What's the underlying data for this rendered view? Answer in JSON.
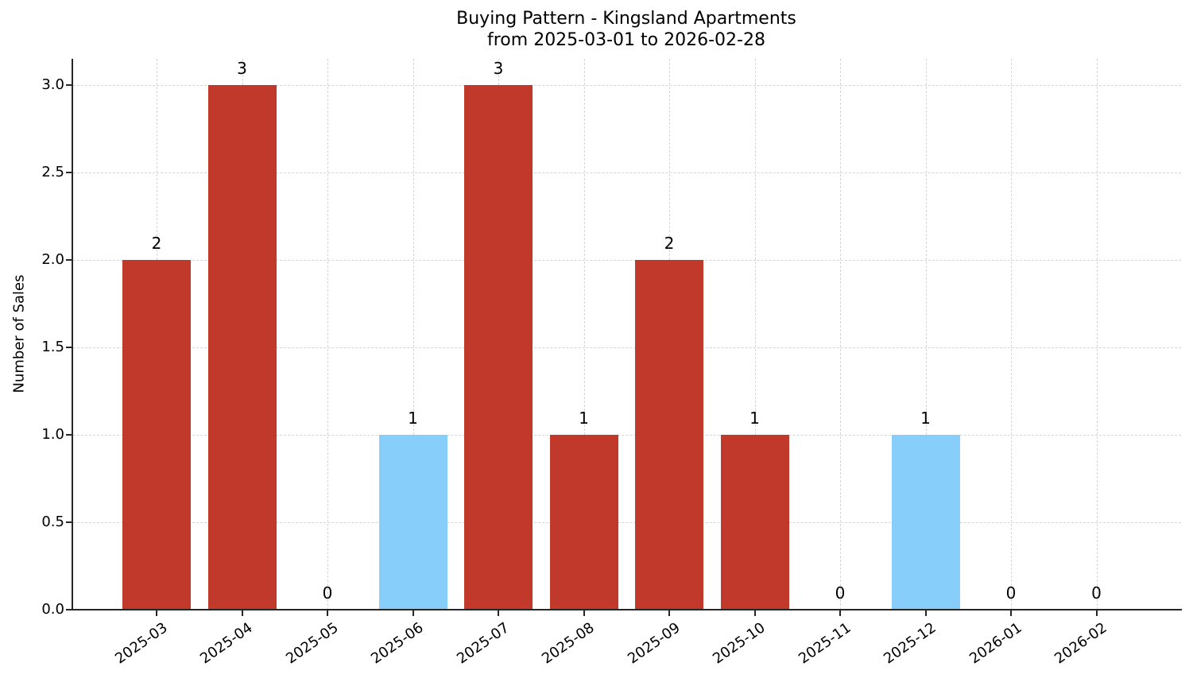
{
  "chart_data": {
    "type": "bar",
    "title": "Buying Pattern - Kingsland Apartments",
    "subtitle": "from 2025-03-01 to 2026-02-28",
    "xlabel": "",
    "ylabel": "Number of Sales",
    "ylim": [
      0,
      3.15
    ],
    "yticks": [
      "0.0",
      "0.5",
      "1.0",
      "1.5",
      "2.0",
      "2.5",
      "3.0"
    ],
    "grid": true,
    "categories": [
      "2025-03",
      "2025-04",
      "2025-05",
      "2025-06",
      "2025-07",
      "2025-08",
      "2025-09",
      "2025-10",
      "2025-11",
      "2025-12",
      "2026-01",
      "2026-02"
    ],
    "values": [
      2,
      3,
      0,
      1,
      3,
      1,
      2,
      1,
      0,
      1,
      0,
      0
    ],
    "bar_colors": [
      "#c0392b",
      "#c0392b",
      "#c0392b",
      "#87cefa",
      "#c0392b",
      "#c0392b",
      "#c0392b",
      "#c0392b",
      "#c0392b",
      "#87cefa",
      "#c0392b",
      "#c0392b"
    ],
    "data_labels": [
      "2",
      "3",
      "0",
      "1",
      "3",
      "1",
      "2",
      "1",
      "0",
      "1",
      "0",
      "0"
    ],
    "colors": {
      "primary": "#c0392b",
      "highlight": "#87cefa"
    }
  }
}
